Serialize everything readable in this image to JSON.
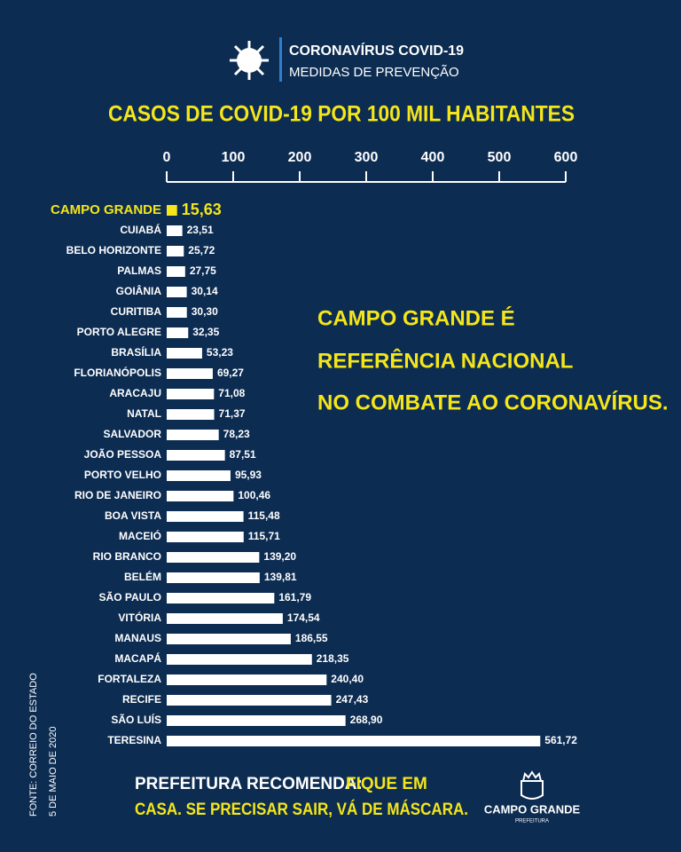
{
  "header": {
    "title": "CORONAVÍRUS  COVID-19",
    "subtitle": "MEDIDAS DE PREVENÇÃO"
  },
  "chart_data": {
    "type": "bar",
    "orientation": "horizontal",
    "title": "CASOS DE COVID-19 POR 100 MIL HABITANTES",
    "categories": [
      "CAMPO GRANDE",
      "CUIABÁ",
      "BELO HORIZONTE",
      "PALMAS",
      "GOIÂNIA",
      "CURITIBA",
      "PORTO ALEGRE",
      "BRASÍLIA",
      "FLORIANÓPOLIS",
      "ARACAJU",
      "NATAL",
      "SALVADOR",
      "JOÃO PESSOA",
      "PORTO VELHO",
      "RIO DE JANEIRO",
      "BOA VISTA",
      "MACEIÓ",
      "RIO BRANCO",
      "BELÉM",
      "SÃO PAULO",
      "VITÓRIA",
      "MANAUS",
      "MACAPÁ",
      "FORTALEZA",
      "RECIFE",
      "SÃO LUÍS",
      "TERESINA"
    ],
    "values": [
      15.63,
      23.51,
      25.72,
      27.75,
      30.14,
      30.3,
      32.35,
      53.23,
      69.27,
      71.08,
      71.37,
      78.23,
      87.51,
      95.93,
      100.46,
      115.48,
      115.71,
      139.2,
      139.81,
      161.79,
      174.54,
      186.55,
      218.35,
      240.4,
      247.43,
      268.9,
      561.72
    ],
    "value_labels": [
      "15,63",
      "23,51",
      "25,72",
      "27,75",
      "30,14",
      "30,30",
      "32,35",
      "53,23",
      "69,27",
      "71,08",
      "71,37",
      "78,23",
      "87,51",
      "95,93",
      "100,46",
      "115,48",
      "115,71",
      "139,20",
      "139,81",
      "161,79",
      "174,54",
      "186,55",
      "218,35",
      "240,40",
      "247,43",
      "268,90",
      "561,72"
    ],
    "colors": [
      "#f4e61a",
      "#ffffff",
      "#ffffff",
      "#ffffff",
      "#ffffff",
      "#ffffff",
      "#ffffff",
      "#ffffff",
      "#ffffff",
      "#ffffff",
      "#ffffff",
      "#ffffff",
      "#ffffff",
      "#ffffff",
      "#ffffff",
      "#ffffff",
      "#ffffff",
      "#ffffff",
      "#ffffff",
      "#ffffff",
      "#ffffff",
      "#ffffff",
      "#ffffff",
      "#ffffff",
      "#ffffff",
      "#ffffff",
      "#ffffff"
    ],
    "xlim": [
      0,
      600
    ],
    "xticks": [
      0,
      100,
      200,
      300,
      400,
      500,
      600
    ],
    "annotation": [
      "CAMPO GRANDE É",
      "REFERÊNCIA NACIONAL",
      "NO COMBATE AO CORONAVÍRUS."
    ]
  },
  "footer": {
    "label": "PREFEITURA RECOMENDA:",
    "message": [
      "FIQUE EM",
      "CASA. SE PRECISAR SAIR, VÁ DE MÁSCARA."
    ]
  },
  "source": [
    "FONTE: CORREIO DO ESTADO",
    "5 DE MAIO DE 2020"
  ],
  "logo": {
    "name": "CAMPO GRANDE",
    "subtitle": "PREFEITURA"
  }
}
